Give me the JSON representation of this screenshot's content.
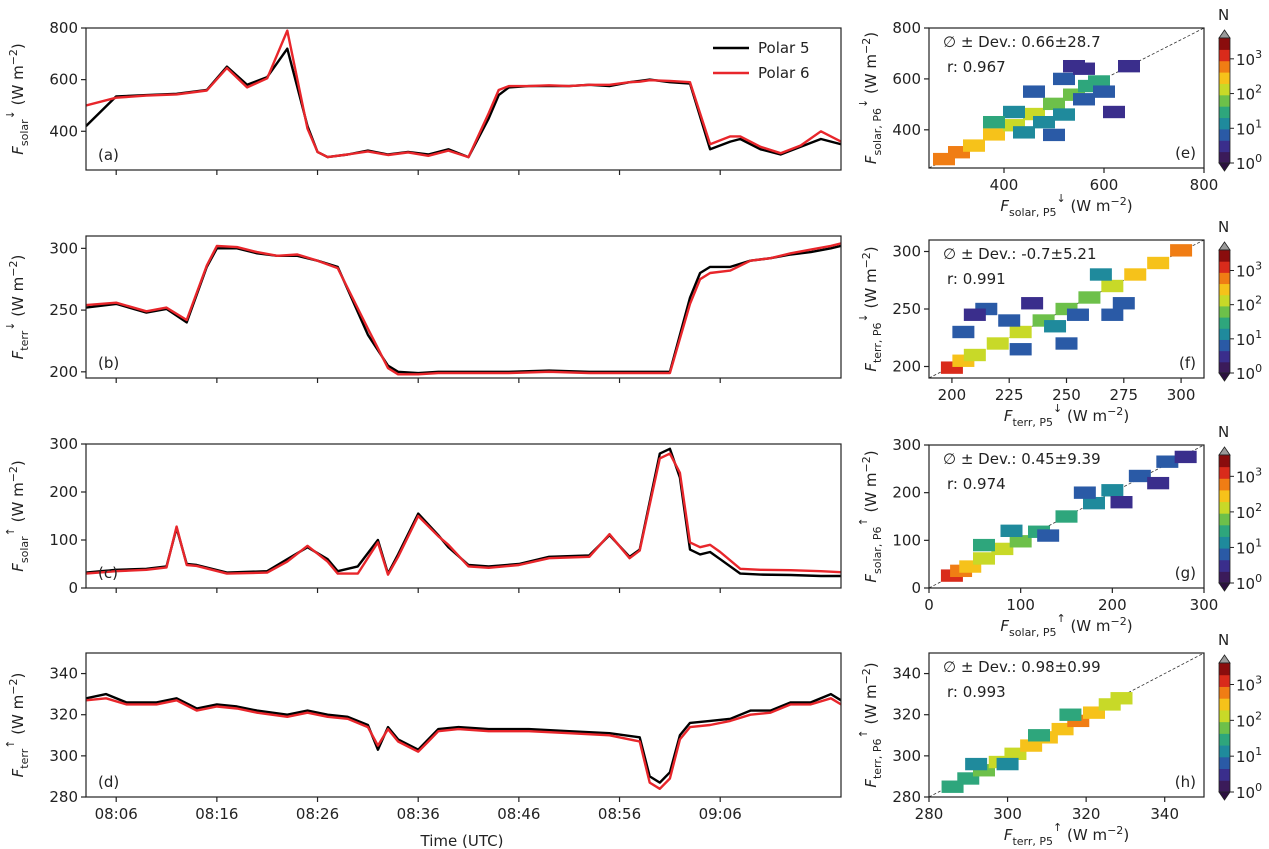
{
  "figure": {
    "x_axis_label": "Time (UTC)",
    "legend": [
      "Polar 5",
      "Polar 6"
    ],
    "colorbar_title": "N",
    "colorbar_ticks": [
      "10^0",
      "10^1",
      "10^2",
      "10^3"
    ]
  },
  "chart_data": [
    {
      "panel": "(a)",
      "type": "line",
      "ylabel": "F_solar ↓ (W m^-2)",
      "xticks": [
        "08:06",
        "08:16",
        "08:26",
        "08:36",
        "08:46",
        "08:56",
        "09:06"
      ],
      "ylim": [
        250,
        800
      ],
      "yticks": [
        400,
        600,
        800
      ],
      "x_minutes": [
        0,
        3,
        6,
        9,
        12,
        14,
        16,
        18,
        20,
        22,
        23,
        24,
        26,
        28,
        30,
        32,
        34,
        36,
        38,
        40,
        41,
        42,
        44,
        46,
        48,
        50,
        52,
        54,
        55,
        56,
        58,
        60,
        62,
        64,
        65,
        67,
        69,
        71,
        73,
        75
      ],
      "series": [
        {
          "name": "Polar 5",
          "color": "#000000",
          "values": [
            420,
            535,
            540,
            545,
            560,
            650,
            580,
            610,
            720,
            420,
            320,
            300,
            310,
            325,
            310,
            320,
            310,
            330,
            300,
            450,
            540,
            570,
            575,
            575,
            575,
            580,
            575,
            590,
            595,
            600,
            590,
            585,
            330,
            360,
            370,
            330,
            310,
            340,
            370,
            350
          ]
        },
        {
          "name": "Polar 6",
          "color": "#e8262b",
          "values": [
            500,
            530,
            538,
            543,
            558,
            645,
            570,
            605,
            790,
            410,
            320,
            300,
            310,
            322,
            308,
            318,
            305,
            325,
            300,
            470,
            560,
            575,
            575,
            578,
            575,
            580,
            580,
            590,
            592,
            598,
            595,
            590,
            350,
            380,
            380,
            340,
            315,
            345,
            400,
            360
          ]
        }
      ]
    },
    {
      "panel": "(b)",
      "type": "line",
      "ylabel": "F_terr ↓ (W m^-2)",
      "xticks": [
        "08:06",
        "08:16",
        "08:26",
        "08:36",
        "08:46",
        "08:56",
        "09:06"
      ],
      "ylim": [
        195,
        310
      ],
      "yticks": [
        200,
        250,
        300
      ],
      "x_minutes": [
        0,
        3,
        6,
        8,
        10,
        12,
        13,
        15,
        17,
        19,
        21,
        23,
        25,
        28,
        30,
        31,
        33,
        35,
        38,
        42,
        46,
        50,
        54,
        56,
        58,
        60,
        61,
        62,
        64,
        66,
        68,
        70,
        72,
        74,
        75
      ],
      "series": [
        {
          "name": "Polar 5",
          "color": "#000000",
          "values": [
            252,
            255,
            248,
            251,
            240,
            285,
            300,
            300,
            296,
            294,
            294,
            290,
            285,
            230,
            205,
            200,
            199,
            200,
            200,
            200,
            201,
            200,
            200,
            200,
            200,
            260,
            280,
            285,
            285,
            290,
            292,
            295,
            297,
            300,
            302
          ]
        },
        {
          "name": "Polar 6",
          "color": "#e8262b",
          "values": [
            254,
            256,
            249,
            252,
            242,
            286,
            302,
            301,
            297,
            294,
            295,
            290,
            284,
            235,
            203,
            198,
            198,
            199,
            199,
            199,
            200,
            199,
            199,
            199,
            199,
            255,
            275,
            280,
            282,
            290,
            292,
            296,
            299,
            302,
            304
          ]
        }
      ]
    },
    {
      "panel": "(c)",
      "type": "line",
      "ylabel": "F_solar ↑ (W m^-2)",
      "xticks": [
        "08:06",
        "08:16",
        "08:26",
        "08:36",
        "08:46",
        "08:56",
        "09:06"
      ],
      "ylim": [
        0,
        300
      ],
      "yticks": [
        0,
        100,
        200,
        300
      ],
      "x_minutes": [
        0,
        3,
        6,
        8,
        9,
        10,
        11,
        14,
        18,
        20,
        22,
        24,
        25,
        27,
        29,
        30,
        31,
        33,
        35,
        36,
        38,
        40,
        43,
        46,
        50,
        52,
        54,
        55,
        57,
        58,
        59,
        60,
        61,
        62,
        63,
        65,
        67,
        70,
        73,
        75
      ],
      "series": [
        {
          "name": "Polar 5",
          "color": "#000000",
          "values": [
            32,
            38,
            40,
            45,
            125,
            50,
            48,
            32,
            35,
            60,
            85,
            60,
            35,
            45,
            100,
            30,
            70,
            155,
            110,
            85,
            48,
            45,
            50,
            65,
            68,
            110,
            65,
            80,
            280,
            290,
            230,
            80,
            70,
            75,
            60,
            30,
            28,
            27,
            25,
            25
          ]
        },
        {
          "name": "Polar 6",
          "color": "#e8262b",
          "values": [
            30,
            35,
            38,
            43,
            128,
            48,
            46,
            30,
            32,
            55,
            88,
            55,
            30,
            30,
            95,
            28,
            65,
            150,
            108,
            90,
            45,
            42,
            48,
            62,
            65,
            112,
            62,
            78,
            270,
            280,
            240,
            95,
            85,
            90,
            75,
            40,
            38,
            37,
            35,
            33
          ]
        }
      ]
    },
    {
      "panel": "(d)",
      "type": "line",
      "ylabel": "F_terr ↑ (W m^-2)",
      "xticks": [
        "08:06",
        "08:16",
        "08:26",
        "08:36",
        "08:46",
        "08:56",
        "09:06"
      ],
      "ylim": [
        280,
        350
      ],
      "yticks": [
        280,
        300,
        320,
        340
      ],
      "x_minutes": [
        0,
        2,
        4,
        7,
        9,
        11,
        13,
        15,
        17,
        20,
        22,
        24,
        26,
        28,
        29,
        30,
        31,
        33,
        34,
        35,
        37,
        40,
        44,
        48,
        52,
        55,
        56,
        57,
        58,
        59,
        60,
        62,
        64,
        66,
        68,
        70,
        72,
        74,
        75
      ],
      "series": [
        {
          "name": "Polar 5",
          "color": "#000000",
          "values": [
            328,
            330,
            326,
            326,
            328,
            323,
            325,
            324,
            322,
            320,
            322,
            320,
            319,
            315,
            303,
            314,
            308,
            303,
            308,
            313,
            314,
            313,
            313,
            312,
            311,
            309,
            290,
            287,
            292,
            310,
            316,
            317,
            318,
            322,
            322,
            326,
            326,
            330,
            327
          ]
        },
        {
          "name": "Polar 6",
          "color": "#e8262b",
          "values": [
            327,
            328,
            325,
            325,
            327,
            322,
            324,
            323,
            321,
            319,
            321,
            319,
            318,
            314,
            305,
            313,
            307,
            302,
            307,
            312,
            313,
            312,
            312,
            311,
            310,
            307,
            287,
            284,
            289,
            308,
            314,
            315,
            317,
            320,
            321,
            325,
            325,
            328,
            325
          ]
        }
      ]
    },
    {
      "panel": "(e)",
      "type": "heatmap",
      "stats": [
        "∅ ± Dev.: 0.66±28.7",
        "r: 0.967"
      ],
      "xlabel": "F_solar,P5 ↓ (W m^-2)",
      "ylabel": "F_solar,P6 ↓ (W m^-2)",
      "xlim": [
        250,
        800
      ],
      "ylim": [
        250,
        800
      ],
      "xticks": [
        400,
        600,
        800
      ],
      "yticks": [
        400,
        600,
        800
      ],
      "x": [
        280,
        310,
        340,
        380,
        420,
        460,
        500,
        540,
        570,
        590,
        420,
        480,
        520,
        560,
        380,
        440,
        520,
        600,
        650,
        560,
        500,
        460,
        540,
        620
      ],
      "y": [
        285,
        312,
        338,
        382,
        418,
        462,
        502,
        538,
        572,
        590,
        470,
        430,
        600,
        520,
        430,
        390,
        460,
        550,
        650,
        640,
        380,
        550,
        650,
        470
      ],
      "counts": [
        1000,
        800,
        500,
        300,
        200,
        100,
        80,
        60,
        40,
        30,
        10,
        8,
        5,
        5,
        20,
        15,
        8,
        6,
        2,
        3,
        4,
        6,
        2,
        3
      ]
    },
    {
      "panel": "(f)",
      "type": "heatmap",
      "stats": [
        "∅ ± Dev.: -0.7±5.21",
        "r: 0.991"
      ],
      "xlabel": "F_terr,P5 ↓ (W m^-2)",
      "ylabel": "F_terr,P6 ↓ (W m^-2)",
      "xlim": [
        190,
        310
      ],
      "ylim": [
        190,
        310
      ],
      "xticks": [
        200,
        225,
        250,
        275,
        300
      ],
      "yticks": [
        200,
        250,
        300
      ],
      "x": [
        200,
        205,
        210,
        220,
        230,
        240,
        250,
        260,
        270,
        280,
        290,
        300,
        205,
        215,
        225,
        235,
        245,
        255,
        265,
        275,
        210,
        230,
        250,
        270
      ],
      "y": [
        199,
        205,
        210,
        220,
        230,
        240,
        250,
        260,
        270,
        280,
        290,
        301,
        230,
        250,
        240,
        255,
        235,
        245,
        280,
        255,
        245,
        215,
        220,
        245
      ],
      "counts": [
        2000,
        300,
        200,
        150,
        100,
        80,
        60,
        80,
        150,
        300,
        400,
        1000,
        5,
        4,
        6,
        3,
        8,
        5,
        10,
        6,
        3,
        4,
        5,
        7
      ]
    },
    {
      "panel": "(g)",
      "type": "heatmap",
      "stats": [
        "∅ ± Dev.: 0.45±9.39",
        "r: 0.974"
      ],
      "xlabel": "F_solar,P5 ↑ (W m^-2)",
      "ylabel": "F_solar,P6 ↑ (W m^-2)",
      "xlim": [
        0,
        300
      ],
      "ylim": [
        0,
        300
      ],
      "xticks": [
        0,
        100,
        200,
        300
      ],
      "yticks": [
        0,
        100,
        200,
        300
      ],
      "x": [
        25,
        35,
        45,
        60,
        80,
        100,
        120,
        150,
        180,
        200,
        230,
        260,
        280,
        60,
        90,
        130,
        170,
        210,
        250
      ],
      "y": [
        26,
        36,
        45,
        62,
        82,
        98,
        118,
        150,
        178,
        205,
        235,
        265,
        275,
        90,
        120,
        110,
        200,
        180,
        220
      ],
      "counts": [
        1500,
        1000,
        500,
        200,
        100,
        60,
        40,
        20,
        15,
        10,
        6,
        4,
        3,
        20,
        10,
        5,
        4,
        3,
        2
      ]
    },
    {
      "panel": "(h)",
      "type": "heatmap",
      "stats": [
        "∅ ± Dev.: 0.98±0.99",
        "r: 0.993"
      ],
      "xlabel": "F_terr,P5 ↑ (W m^-2)",
      "ylabel": "F_terr,P6 ↑ (W m^-2)",
      "xlim": [
        280,
        350
      ],
      "ylim": [
        280,
        350
      ],
      "xticks": [
        280,
        300,
        320,
        340
      ],
      "yticks": [
        280,
        300,
        320,
        340
      ],
      "x": [
        286,
        290,
        294,
        298,
        302,
        306,
        310,
        314,
        318,
        322,
        326,
        329,
        292,
        300,
        308,
        316
      ],
      "y": [
        285,
        289,
        293,
        297,
        301,
        305,
        309,
        313,
        317,
        321,
        325,
        328,
        296,
        296,
        310,
        320
      ],
      "counts": [
        20,
        40,
        80,
        150,
        200,
        300,
        400,
        500,
        600,
        400,
        200,
        100,
        10,
        15,
        30,
        40
      ]
    }
  ]
}
